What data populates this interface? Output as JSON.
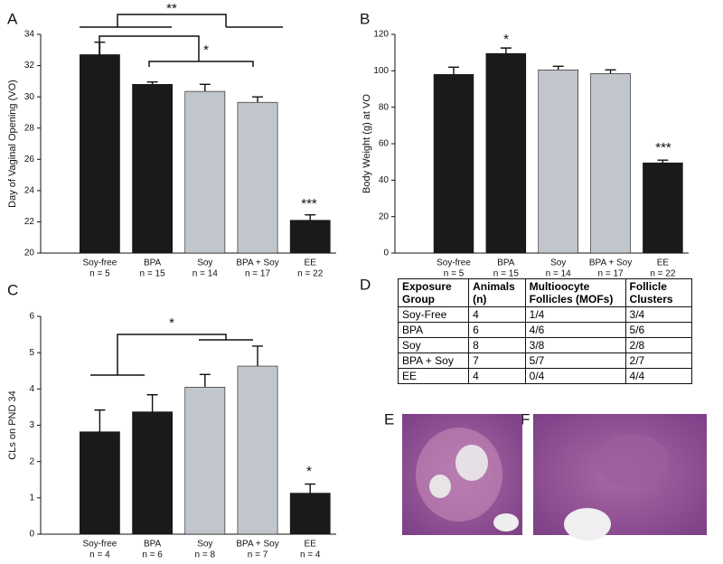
{
  "chart_data": [
    {
      "type": "bar",
      "panel": "A",
      "ylabel": "Day of Vaginal Opening (VO)",
      "categories": [
        "Soy-free",
        "BPA",
        "Soy",
        "BPA + Soy",
        "EE"
      ],
      "sublabels": [
        "n = 5",
        "n = 15",
        "n = 14",
        "n = 17",
        "n = 22"
      ],
      "values": [
        32.7,
        30.8,
        30.35,
        29.65,
        22.1
      ],
      "errors": [
        0.8,
        0.15,
        0.45,
        0.35,
        0.35
      ],
      "colors": [
        "#1a1a1a",
        "#1a1a1a",
        "#c1c6cc",
        "#c1c6cc",
        "#1a1a1a"
      ],
      "ylim": [
        20,
        34
      ],
      "yticks": [
        20,
        22,
        24,
        26,
        28,
        30,
        32,
        34
      ],
      "annotations": [
        "**",
        "*",
        "***"
      ]
    },
    {
      "type": "bar",
      "panel": "B",
      "ylabel": "Body Weight (g) at VO",
      "categories": [
        "Soy-free",
        "BPA",
        "Soy",
        "BPA + Soy",
        "EE"
      ],
      "sublabels": [
        "n = 5",
        "n = 15",
        "n = 14",
        "n = 17",
        "n = 22"
      ],
      "values": [
        98,
        109.5,
        100.5,
        98.5,
        49.5
      ],
      "errors": [
        4,
        3,
        2,
        2,
        1.5
      ],
      "colors": [
        "#1a1a1a",
        "#1a1a1a",
        "#c1c6cc",
        "#c1c6cc",
        "#1a1a1a"
      ],
      "ylim": [
        0,
        120
      ],
      "yticks": [
        0,
        20,
        40,
        60,
        80,
        100,
        120
      ],
      "annotations": [
        "*",
        "***"
      ]
    },
    {
      "type": "bar",
      "panel": "C",
      "ylabel": "CLs on PND 34",
      "categories": [
        "Soy-free",
        "BPA",
        "Soy",
        "BPA + Soy",
        "EE"
      ],
      "sublabels": [
        "n = 4",
        "n = 6",
        "n = 8",
        "n = 7",
        "n = 4"
      ],
      "values": [
        2.82,
        3.37,
        4.05,
        4.63,
        1.13
      ],
      "errors": [
        0.6,
        0.47,
        0.35,
        0.55,
        0.25
      ],
      "colors": [
        "#1a1a1a",
        "#1a1a1a",
        "#c1c6cc",
        "#c1c6cc",
        "#1a1a1a"
      ],
      "ylim": [
        0,
        6
      ],
      "yticks": [
        0,
        1,
        2,
        3,
        4,
        5,
        6
      ],
      "annotations": [
        "*",
        "*"
      ]
    }
  ],
  "table": {
    "panel": "D",
    "header": [
      "Exposure Group",
      "Animals (n)",
      "Multioocyte Follicles (MOFs)",
      "Follicle Clusters"
    ],
    "rows": [
      [
        "Soy-Free",
        "4",
        "1/4",
        "3/4"
      ],
      [
        "BPA",
        "6",
        "4/6",
        "5/6"
      ],
      [
        "Soy",
        "8",
        "3/8",
        "2/8"
      ],
      [
        "BPA + Soy",
        "7",
        "5/7",
        "2/7"
      ],
      [
        "EE",
        "4",
        "0/4",
        "4/4"
      ]
    ]
  },
  "images": [
    {
      "panel": "E"
    },
    {
      "panel": "F"
    }
  ]
}
